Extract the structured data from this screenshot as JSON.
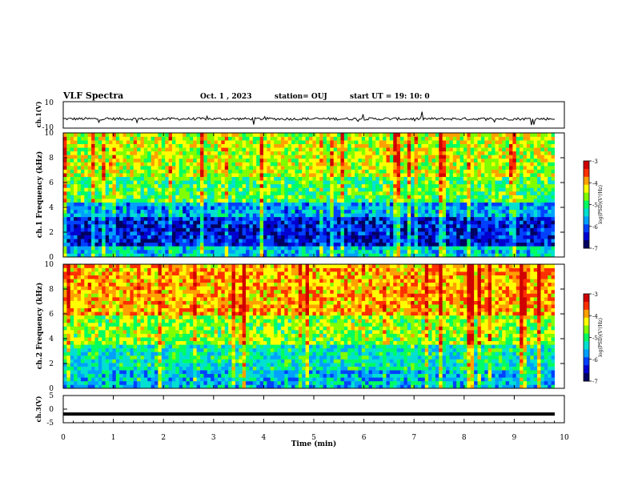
{
  "header": {
    "title": "VLF Spectra",
    "date": "Oct. 1 , 2023",
    "station": "station= OUJ",
    "start_ut": "start UT = 19: 10: 0"
  },
  "colorbar": {
    "label": "log(PSD)(V²/Hz)",
    "ticks": [
      "-3",
      "-4",
      "-5",
      "-6",
      "-7"
    ],
    "colors": [
      "#d00000",
      "#ff3000",
      "#ffa000",
      "#ffff00",
      "#80ff00",
      "#00ff60",
      "#00e0d0",
      "#00a0ff",
      "#0040ff",
      "#0000d0",
      "#000060"
    ]
  },
  "chart_data": [
    {
      "type": "line",
      "panel": "ch1_waveform",
      "ylabel": "ch.1(V)",
      "ylim": [
        -10,
        10
      ],
      "yticks": [
        "10",
        "-10"
      ],
      "x_unit": "min",
      "description_values": {
        "baseline": -3,
        "noise_amplitude": 1
      }
    },
    {
      "type": "heatmap",
      "panel": "ch1_spectrogram",
      "ylabel": "ch.1 Frequency (kHz)",
      "ylim": [
        0,
        10
      ],
      "yticks": [
        "10",
        "8",
        "6",
        "4",
        "2",
        "0"
      ],
      "xlim": [
        0,
        9.8
      ],
      "z_range": [
        -7,
        -3
      ],
      "z_label": "log(PSD)(V²/Hz)",
      "bands": [
        {
          "f_from": 0,
          "f_to": 0.8,
          "level": -5.5
        },
        {
          "f_from": 0.8,
          "f_to": 3.2,
          "level": -6.5
        },
        {
          "f_from": 3.2,
          "f_to": 4.5,
          "level": -5.8
        },
        {
          "f_from": 4.5,
          "f_to": 6.5,
          "level": -4.9
        },
        {
          "f_from": 6.5,
          "f_to": 10,
          "level": -4.4
        }
      ]
    },
    {
      "type": "heatmap",
      "panel": "ch2_spectrogram",
      "ylabel": "ch.2 Frequency (kHz)",
      "ylim": [
        0,
        10
      ],
      "yticks": [
        "10",
        "8",
        "6",
        "4",
        "2",
        "0"
      ],
      "xlim": [
        0,
        9.8
      ],
      "z_range": [
        -7,
        -3
      ],
      "z_label": "log(PSD)(V²/Hz)",
      "bands": [
        {
          "f_from": 0,
          "f_to": 1.5,
          "level": -5.6
        },
        {
          "f_from": 1.5,
          "f_to": 3.6,
          "level": -5.3
        },
        {
          "f_from": 3.6,
          "f_to": 6.0,
          "level": -4.6
        },
        {
          "f_from": 6.0,
          "f_to": 10,
          "level": -3.9
        }
      ]
    },
    {
      "type": "line",
      "panel": "ch3_waveform",
      "ylabel": "ch.3(V)",
      "ylim": [
        -5,
        5
      ],
      "yticks": [
        "5",
        "0",
        "-5"
      ],
      "xlabel": "Time (min)",
      "xlim": [
        0,
        10
      ],
      "xticks": [
        "0",
        "1",
        "2",
        "3",
        "4",
        "5",
        "6",
        "7",
        "8",
        "9",
        "10"
      ],
      "values_constant": -1.8
    }
  ]
}
